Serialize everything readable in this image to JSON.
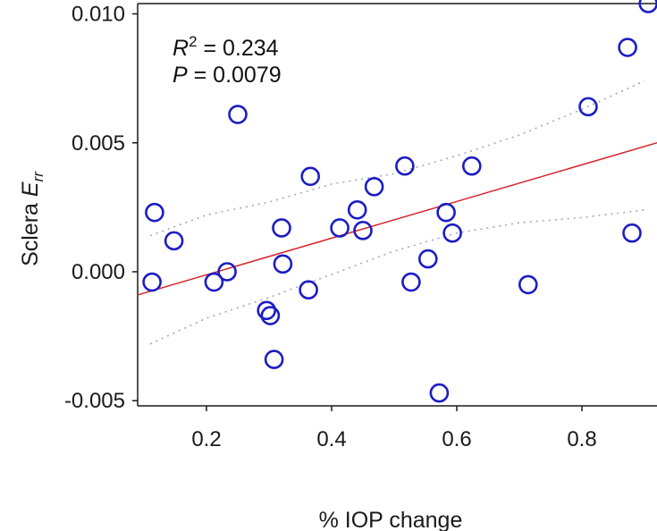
{
  "chart_data": {
    "type": "scatter",
    "xlabel": "% IOP change",
    "ylabel_prefix": "Sclera ",
    "ylabel_var": "E",
    "ylabel_sub": "rr",
    "xlim": [
      0.09,
      0.92
    ],
    "ylim": [
      -0.0052,
      0.0104
    ],
    "x_ticks": [
      0.2,
      0.4,
      0.6,
      0.8
    ],
    "x_tick_labels": [
      "0.2",
      "0.4",
      "0.6",
      "0.8"
    ],
    "y_ticks": [
      -0.005,
      0.0,
      0.005,
      0.01
    ],
    "y_tick_labels": [
      "-0.005",
      "0.000",
      "0.005",
      "0.010"
    ],
    "grid": false,
    "annotations": {
      "r2_symbol": "R",
      "r2_exp": "2",
      "r2_value": " = 0.234",
      "p_symbol": "P",
      "p_value": " = 0.0079"
    },
    "points": [
      {
        "x": 0.113,
        "y": -0.0004
      },
      {
        "x": 0.117,
        "y": 0.0023
      },
      {
        "x": 0.148,
        "y": 0.0012
      },
      {
        "x": 0.212,
        "y": -0.0004
      },
      {
        "x": 0.233,
        "y": 0.0
      },
      {
        "x": 0.25,
        "y": 0.0061
      },
      {
        "x": 0.296,
        "y": -0.0015
      },
      {
        "x": 0.302,
        "y": -0.0017
      },
      {
        "x": 0.308,
        "y": -0.0034
      },
      {
        "x": 0.32,
        "y": 0.0017
      },
      {
        "x": 0.322,
        "y": 0.0003
      },
      {
        "x": 0.363,
        "y": -0.0007
      },
      {
        "x": 0.366,
        "y": 0.0037
      },
      {
        "x": 0.413,
        "y": 0.0017
      },
      {
        "x": 0.441,
        "y": 0.0024
      },
      {
        "x": 0.45,
        "y": 0.0016
      },
      {
        "x": 0.468,
        "y": 0.0033
      },
      {
        "x": 0.517,
        "y": 0.0041
      },
      {
        "x": 0.527,
        "y": -0.0004
      },
      {
        "x": 0.554,
        "y": 0.0005
      },
      {
        "x": 0.572,
        "y": -0.0047
      },
      {
        "x": 0.583,
        "y": 0.0023
      },
      {
        "x": 0.593,
        "y": 0.0015
      },
      {
        "x": 0.624,
        "y": 0.0041
      },
      {
        "x": 0.714,
        "y": -0.0005
      },
      {
        "x": 0.81,
        "y": 0.0064
      },
      {
        "x": 0.873,
        "y": 0.0087
      },
      {
        "x": 0.88,
        "y": 0.0015
      },
      {
        "x": 0.906,
        "y": 0.0104
      }
    ],
    "fit_line": {
      "x": [
        0.09,
        0.92
      ],
      "y": [
        -0.0009,
        0.005
      ]
    },
    "ci_upper": {
      "x": [
        0.11,
        0.2,
        0.3,
        0.4,
        0.5,
        0.6,
        0.7,
        0.8,
        0.9
      ],
      "y": [
        0.0014,
        0.0022,
        0.0027,
        0.0034,
        0.0038,
        0.0045,
        0.0053,
        0.0063,
        0.0074
      ]
    },
    "ci_lower": {
      "x": [
        0.11,
        0.2,
        0.3,
        0.4,
        0.5,
        0.6,
        0.7,
        0.8,
        0.9
      ],
      "y": [
        -0.0028,
        -0.0018,
        -0.001,
        -0.0001,
        0.0008,
        0.0015,
        0.0019,
        0.0021,
        0.0024
      ]
    },
    "colors": {
      "points": "#1c1cc4",
      "fit_line": "#d6242a",
      "ci": "#9aa5c4",
      "axis": "#1a1a1a"
    }
  }
}
